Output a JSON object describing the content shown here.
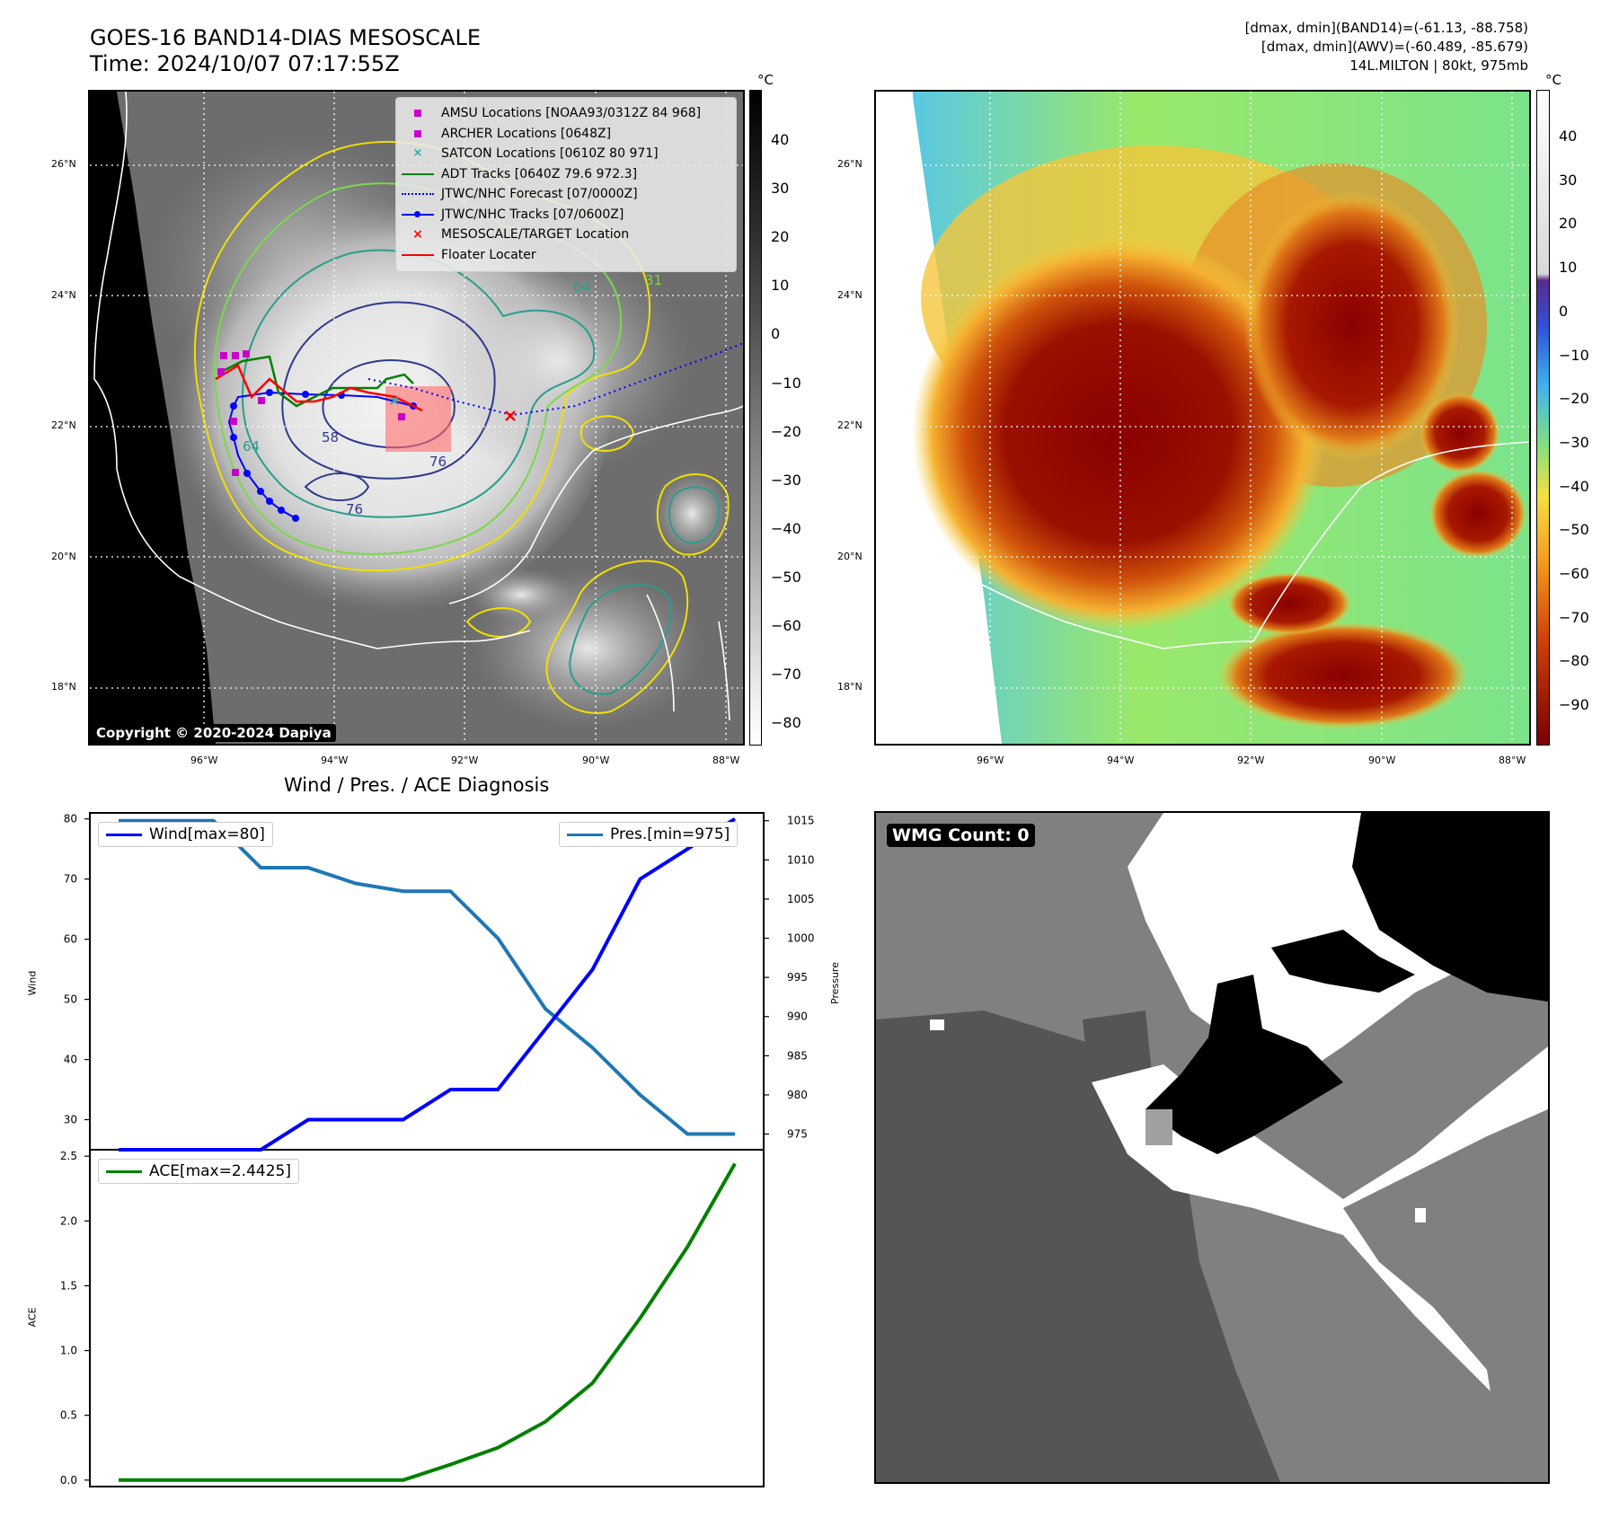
{
  "header": {
    "title_line1": "GOES-16 BAND14-DIAS MESOSCALE",
    "title_line2": "Time: 2024/10/07 07:17:55Z",
    "info_line1": "[dmax, dmin](BAND14)=(-61.13, -88.758)",
    "info_line2": "[dmax, dmin](AWV)=(-60.489, -85.679)",
    "info_line3": "14L.MILTON | 80kt, 975mb"
  },
  "map_axes": {
    "lat_ticks": [
      "26°N",
      "24°N",
      "22°N",
      "20°N",
      "18°N"
    ],
    "lon_ticks": [
      "96°W",
      "94°W",
      "92°W",
      "90°W",
      "88°W"
    ]
  },
  "colorbar_left": {
    "unit": "°C",
    "ticks": [
      "40",
      "30",
      "20",
      "10",
      "0",
      "−10",
      "−20",
      "−30",
      "−40",
      "−50",
      "−60",
      "−70",
      "−80"
    ]
  },
  "colorbar_right": {
    "unit": "°C",
    "ticks": [
      "40",
      "30",
      "20",
      "10",
      "0",
      "−10",
      "−20",
      "−30",
      "−40",
      "−50",
      "−60",
      "−70",
      "−80",
      "−90"
    ]
  },
  "map_legend": [
    {
      "label": "AMSU Locations [NOAA93/0312Z 84 968]",
      "marker": "square",
      "color": "#c800c8"
    },
    {
      "label": "ARCHER Locations [0648Z]",
      "marker": "square",
      "color": "#c800c8"
    },
    {
      "label": "SATCON Locations [0610Z 80 971]",
      "marker": "x",
      "color": "#20b2aa"
    },
    {
      "label": "ADT Tracks [0640Z 79.6 972.3]",
      "marker": "line",
      "color": "#008000"
    },
    {
      "label": "JTWC/NHC Forecast [07/0000Z]",
      "marker": "dotted",
      "color": "#0000ff"
    },
    {
      "label": "JTWC/NHC Tracks [07/0600Z]",
      "marker": "line-dot",
      "color": "#0000ff"
    },
    {
      "label": "MESOSCALE/TARGET Location",
      "marker": "x",
      "color": "#ff0000"
    },
    {
      "label": "Floater Locater",
      "marker": "line",
      "color": "#ff0000"
    }
  ],
  "contour_labels": [
    "64",
    "64",
    "76",
    "76",
    "76",
    "31",
    "58"
  ],
  "copyright": "Copyright © 2020-2024 Dapiya",
  "diagnosis_title": "Wind / Pres. / ACE Diagnosis",
  "wmg": {
    "label": "WMG Count: 0"
  },
  "colors": {
    "wind": "#0000ff",
    "pressure": "#1f77b4",
    "ace": "#008000"
  },
  "chart_data": [
    {
      "type": "line",
      "title": "Wind / Pres. / ACE Diagnosis",
      "ylabel": "Wind",
      "y2label": "Pressure",
      "x": [
        0,
        1,
        2,
        3,
        4,
        5,
        6,
        7,
        8,
        9,
        10,
        11,
        12,
        13
      ],
      "ylim": [
        25,
        81
      ],
      "y2lim": [
        973,
        1016
      ],
      "yticks": [
        30,
        40,
        50,
        60,
        70,
        80
      ],
      "y2ticks": [
        975,
        980,
        985,
        990,
        995,
        1000,
        1005,
        1010,
        1015
      ],
      "series": [
        {
          "name": "Wind[max=80]",
          "axis": "left",
          "values": [
            25,
            25,
            25,
            25,
            30,
            30,
            30,
            35,
            35,
            45,
            55,
            70,
            75,
            80
          ]
        },
        {
          "name": "Pres.[min=975]",
          "axis": "right",
          "values": [
            1015,
            1015,
            1015,
            1009,
            1009,
            1007,
            1006,
            1006,
            1000,
            991,
            986,
            980,
            975,
            975
          ]
        }
      ],
      "legend": [
        "Wind[max=80]",
        "Pres.[min=975]"
      ]
    },
    {
      "type": "line",
      "ylabel": "ACE",
      "x": [
        0,
        1,
        2,
        3,
        4,
        5,
        6,
        7,
        8,
        9,
        10,
        11,
        12,
        13
      ],
      "ylim": [
        -0.05,
        2.55
      ],
      "yticks": [
        0.0,
        0.5,
        1.0,
        1.5,
        2.0,
        2.5
      ],
      "ytick_labels": [
        "0.0",
        "0.5",
        "1.0",
        "1.5",
        "2.0",
        "2.5"
      ],
      "series": [
        {
          "name": "ACE[max=2.4425]",
          "values": [
            0,
            0,
            0,
            0,
            0,
            0,
            0,
            0.12,
            0.25,
            0.45,
            0.75,
            1.25,
            1.8,
            2.4425
          ]
        }
      ],
      "legend": [
        "ACE[max=2.4425]"
      ]
    }
  ]
}
